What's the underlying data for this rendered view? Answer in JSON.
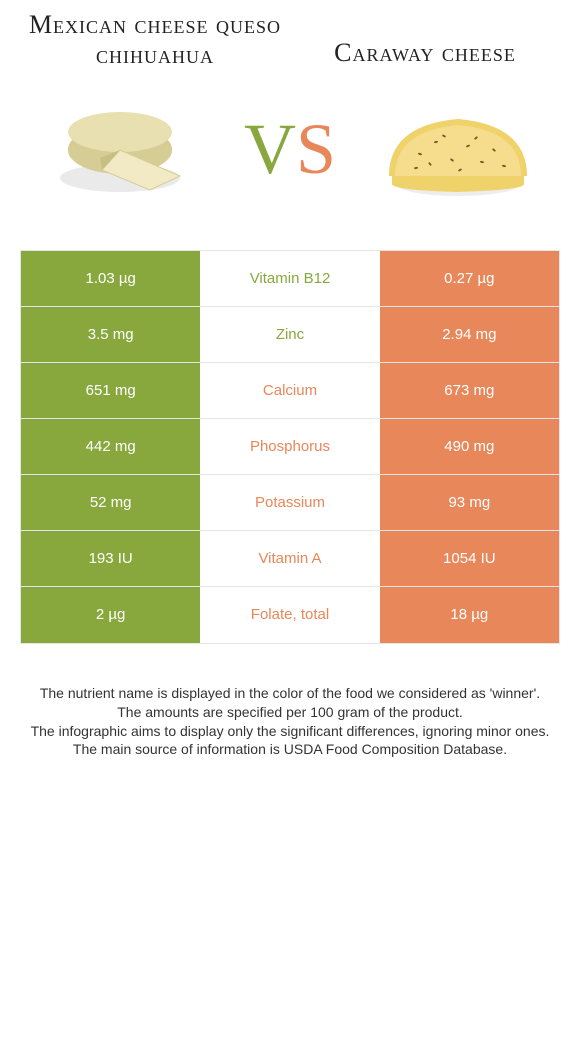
{
  "left": {
    "title": "Mexican cheese queso chihuahua",
    "color": "#88a83e",
    "cheese_colors": {
      "top": "#e8e0b0",
      "side": "#d6cd95",
      "shadow": "#c8bf87",
      "wedge": "#f1eac5"
    }
  },
  "right": {
    "title": "Caraway cheese",
    "color": "#e8875a",
    "cheese_colors": {
      "body": "#f5dd8d",
      "rind": "#f0d26a",
      "speckle": "#7a5a2a"
    }
  },
  "vs": {
    "v": "V",
    "s": "S"
  },
  "rows": [
    {
      "nutrient": "Vitamin B12",
      "left": "1.03 µg",
      "right": "0.27 µg",
      "winner": "left"
    },
    {
      "nutrient": "Zinc",
      "left": "3.5 mg",
      "right": "2.94 mg",
      "winner": "left"
    },
    {
      "nutrient": "Calcium",
      "left": "651 mg",
      "right": "673 mg",
      "winner": "right"
    },
    {
      "nutrient": "Phosphorus",
      "left": "442 mg",
      "right": "490 mg",
      "winner": "right"
    },
    {
      "nutrient": "Potassium",
      "left": "52 mg",
      "right": "93 mg",
      "winner": "right"
    },
    {
      "nutrient": "Vitamin A",
      "left": "193 IU",
      "right": "1054 IU",
      "winner": "right"
    },
    {
      "nutrient": "Folate, total",
      "left": "2 µg",
      "right": "18 µg",
      "winner": "right"
    }
  ],
  "footer": [
    "The nutrient name is displayed in the color of the food we considered as 'winner'.",
    "The amounts are specified per 100 gram of the product.",
    "The infographic aims to display only the significant differences, ignoring minor ones.",
    "The main source of information is USDA Food Composition Database."
  ]
}
